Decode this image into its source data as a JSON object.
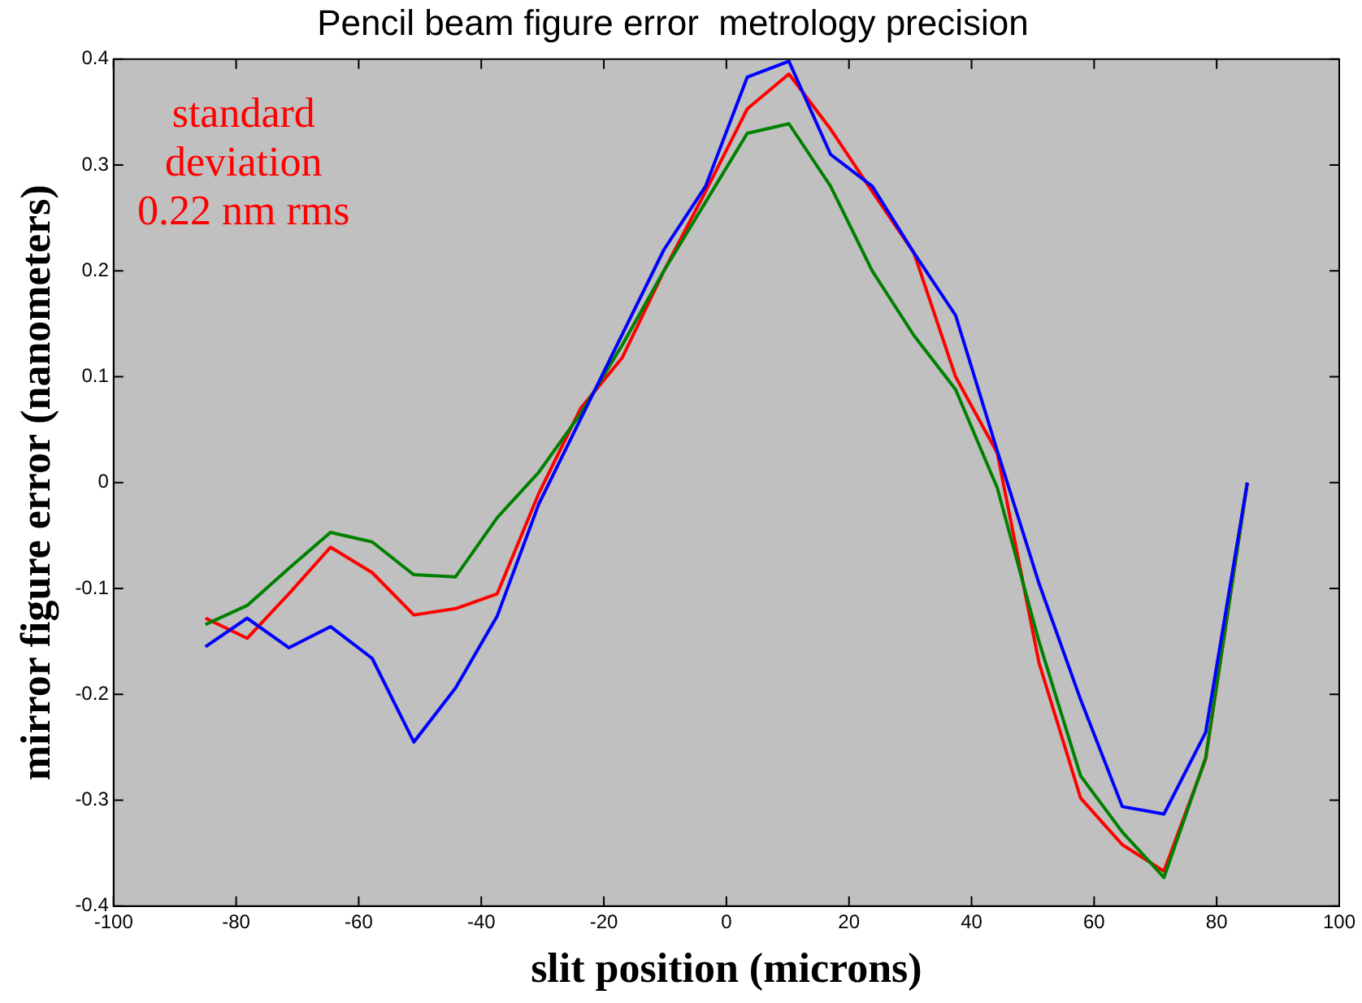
{
  "chart_data": {
    "type": "line",
    "title": "Pencil beam figure error  metrology precision",
    "xlabel": "slit position (microns)",
    "ylabel": "mirror figure error (nanometers)",
    "annotations": [
      "standard\ndeviation\n0.22 nm rms"
    ],
    "x": [
      -85,
      -78.2,
      -71.4,
      -64.6,
      -57.8,
      -51,
      -44.2,
      -37.4,
      -30.6,
      -23.8,
      -17,
      -10.2,
      -3.4,
      3.4,
      10.2,
      17,
      23.8,
      30.6,
      37.4,
      44.2,
      51,
      57.8,
      64.6,
      71.4,
      78.2,
      85
    ],
    "xlim": [
      -100,
      100
    ],
    "xticks": [
      -100,
      -80,
      -60,
      -40,
      -20,
      0,
      20,
      40,
      60,
      80,
      100
    ],
    "ylim": [
      -0.4,
      0.4
    ],
    "yticks": [
      -0.4,
      -0.3,
      -0.2,
      -0.1,
      0,
      0.1,
      0.2,
      0.3,
      0.4
    ],
    "grid": false,
    "legend": false,
    "marker": "none",
    "line_style": "solid",
    "series": [
      {
        "color": "#0000ff",
        "values": [
          -0.155,
          -0.128,
          -0.156,
          -0.136,
          -0.166,
          -0.245,
          -0.194,
          -0.126,
          -0.02,
          0.06,
          0.14,
          0.22,
          0.28,
          0.383,
          0.398,
          0.31,
          0.28,
          0.217,
          0.158,
          0.03,
          -0.095,
          -0.205,
          -0.306,
          -0.313,
          -0.236,
          0
        ]
      },
      {
        "color": "#008000",
        "values": [
          -0.134,
          -0.116,
          -0.081,
          -0.047,
          -0.056,
          -0.087,
          -0.089,
          -0.033,
          0.01,
          0.065,
          0.13,
          0.2,
          0.265,
          0.33,
          0.339,
          0.28,
          0.2,
          0.139,
          0.088,
          -0.005,
          -0.15,
          -0.277,
          -0.33,
          -0.373,
          -0.26,
          0
        ]
      },
      {
        "color": "#ff0000",
        "values": [
          -0.128,
          -0.147,
          -0.105,
          -0.061,
          -0.085,
          -0.125,
          -0.119,
          -0.105,
          -0.01,
          0.07,
          0.118,
          0.2,
          0.275,
          0.353,
          0.386,
          0.334,
          0.275,
          0.217,
          0.1,
          0.028,
          -0.17,
          -0.298,
          -0.342,
          -0.367,
          -0.261,
          0
        ]
      }
    ]
  }
}
